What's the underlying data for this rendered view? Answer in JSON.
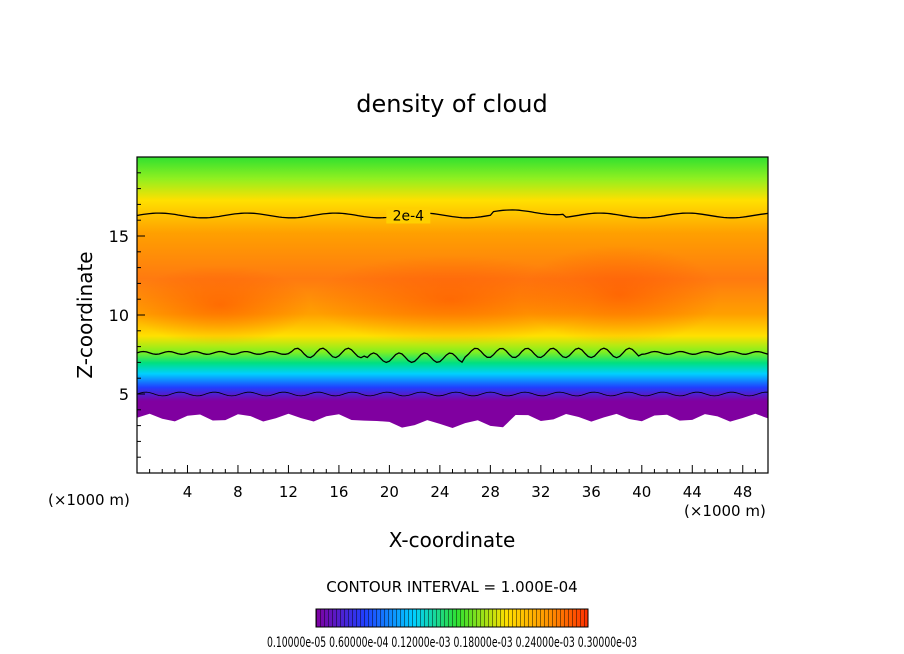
{
  "chart_data": {
    "type": "contour",
    "title": "density of cloud",
    "xlabel": "X-coordinate",
    "ylabel": "Z-coordinate",
    "xunit_left": "(×1000 m)",
    "xunit_right": "(×1000 m)",
    "xlim": [
      0,
      50
    ],
    "ylim": [
      0,
      20
    ],
    "xticks": [
      4,
      8,
      12,
      16,
      20,
      24,
      28,
      32,
      36,
      40,
      44,
      48
    ],
    "yticks": [
      5,
      10,
      15
    ],
    "contour_label": "2e-4",
    "contour_interval_text": "CONTOUR INTERVAL = 1.000E-04",
    "colorbar_labels_text": "0.10000e-05 0.60000e-04 0.12000e-03 0.18000e-03 0.24000e-03 0.30000e-03",
    "cloud_layer": {
      "base": 3.5,
      "top": 19.5,
      "core_center": 11,
      "peak_density": 0.0003
    },
    "contours": [
      {
        "level": 0.0002,
        "mean_height": 16.3
      },
      {
        "level": 0.0002,
        "mean_height": 7.6
      },
      {
        "level": 0.0001,
        "mean_height": 5.0
      }
    ],
    "colors": {
      "purple": "#8000a0",
      "blue": "#2040ff",
      "cyan": "#00e0ff",
      "green": "#30e030",
      "yellow": "#ffe000",
      "orange": "#ff9000",
      "red": "#ff5000"
    }
  }
}
